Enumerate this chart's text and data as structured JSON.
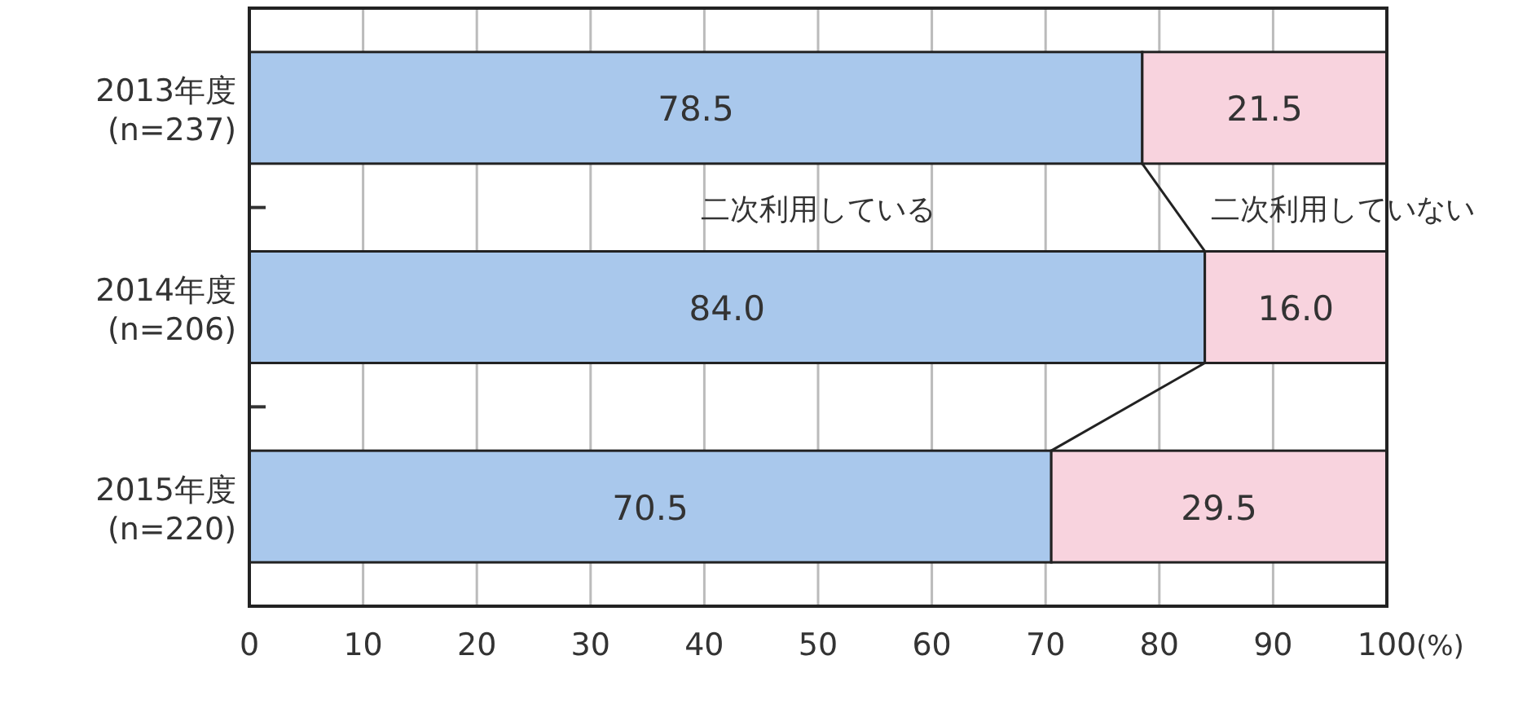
{
  "chart_data": {
    "type": "bar",
    "orientation": "horizontal",
    "stacked": true,
    "xlabel": "(%)",
    "categories": [
      "2013年度\n(n=237)",
      "2014年度\n(n=206)",
      "2015年度\n(n=220)"
    ],
    "series": [
      {
        "name": "二次利用している",
        "color": "#a9c8ec",
        "values": [
          78.5,
          84.0,
          70.5
        ]
      },
      {
        "name": "二次利用していない",
        "color": "#f8d3de",
        "values": [
          21.5,
          16.0,
          29.5
        ]
      }
    ],
    "value_labels": [
      [
        "78.5",
        "84.0",
        "70.5"
      ],
      [
        "21.5",
        "16.0",
        "29.5"
      ]
    ],
    "xlim": [
      0,
      100
    ],
    "xticks": [
      0,
      10,
      20,
      30,
      40,
      50,
      60,
      70,
      80,
      90,
      100
    ],
    "grid": "x"
  }
}
